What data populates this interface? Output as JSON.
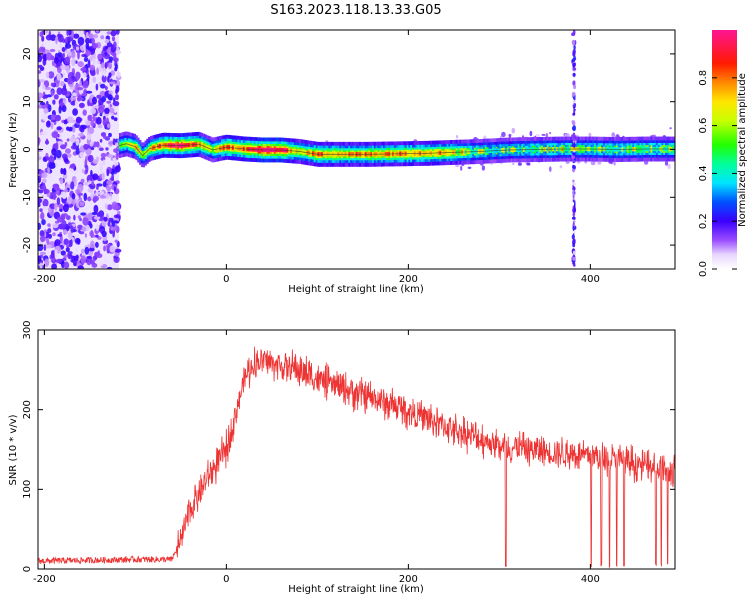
{
  "title": "S163.2023.118.13.33.G05",
  "chart_data": [
    {
      "type": "heatmap",
      "name": "spectrogram",
      "xlabel": "Height of straight line (km)",
      "ylabel": "Frequency (Hz)",
      "xlim": [
        -207,
        493
      ],
      "ylim": [
        -25,
        25
      ],
      "xticks": [
        -200,
        0,
        200,
        400
      ],
      "yticks": [
        -20,
        -10,
        0,
        10,
        20
      ],
      "colorbar": {
        "label": "Normalized spectral amplitude",
        "range": [
          0,
          1
        ],
        "ticks": [
          "0.0",
          "0.2",
          "0.4",
          "0.6",
          "0.8"
        ],
        "colormap": [
          "#ffffff",
          "#d9b8ff",
          "#8c3cf0",
          "#2a00ff",
          "#00e5ff",
          "#00ff66",
          "#b6ff00",
          "#ffff00",
          "#ff7f00",
          "#ff0000",
          "#ff1493"
        ]
      },
      "noise_region_x": [
        -207,
        -118
      ],
      "spike_x": 382,
      "ridge_points": [
        {
          "x": -118,
          "y": 0.8,
          "a": 0.55
        },
        {
          "x": -110,
          "y": 1.2,
          "a": 0.6
        },
        {
          "x": -100,
          "y": 0.6,
          "a": 0.7
        },
        {
          "x": -92,
          "y": -1.3,
          "a": 0.6
        },
        {
          "x": -84,
          "y": 0.2,
          "a": 0.7
        },
        {
          "x": -70,
          "y": 0.9,
          "a": 0.85
        },
        {
          "x": -50,
          "y": 0.8,
          "a": 0.95
        },
        {
          "x": -30,
          "y": 1.1,
          "a": 0.75
        },
        {
          "x": -15,
          "y": -0.1,
          "a": 0.6
        },
        {
          "x": 0,
          "y": 0.5,
          "a": 0.8
        },
        {
          "x": 20,
          "y": 0.1,
          "a": 0.85
        },
        {
          "x": 40,
          "y": -0.1,
          "a": 1.0
        },
        {
          "x": 60,
          "y": -0.1,
          "a": 0.95
        },
        {
          "x": 80,
          "y": -0.4,
          "a": 0.65
        },
        {
          "x": 100,
          "y": -1.0,
          "a": 0.8
        },
        {
          "x": 130,
          "y": -1.0,
          "a": 0.75
        },
        {
          "x": 160,
          "y": -1.0,
          "a": 0.78
        },
        {
          "x": 190,
          "y": -0.9,
          "a": 0.8
        },
        {
          "x": 220,
          "y": -0.8,
          "a": 0.78
        },
        {
          "x": 250,
          "y": -0.6,
          "a": 0.72
        },
        {
          "x": 280,
          "y": -0.4,
          "a": 0.58
        },
        {
          "x": 310,
          "y": -0.1,
          "a": 0.55
        },
        {
          "x": 340,
          "y": 0.0,
          "a": 0.6
        },
        {
          "x": 370,
          "y": 0.1,
          "a": 0.62
        },
        {
          "x": 400,
          "y": 0.1,
          "a": 0.6
        },
        {
          "x": 430,
          "y": 0.0,
          "a": 0.6
        },
        {
          "x": 460,
          "y": 0.1,
          "a": 0.62
        },
        {
          "x": 493,
          "y": 0.1,
          "a": 0.6
        }
      ]
    },
    {
      "type": "line",
      "name": "snr",
      "xlabel": "Height of straight line (km)",
      "ylabel": "SNR (10 * v/v)",
      "xlim": [
        -207,
        493
      ],
      "ylim": [
        0,
        300
      ],
      "xticks": [
        -200,
        0,
        200,
        400
      ],
      "yticks": [
        0,
        100,
        200,
        300
      ],
      "color": "#ee3333",
      "series": [
        {
          "x": [
            -207,
            -150,
            -100,
            -60,
            -50,
            -40,
            -20,
            0,
            10,
            20,
            30,
            40,
            60,
            80,
            100,
            150,
            200,
            250,
            300,
            350,
            400,
            450,
            470,
            493
          ],
          "y": [
            10,
            11,
            12,
            12,
            35,
            75,
            115,
            150,
            195,
            240,
            258,
            262,
            255,
            250,
            238,
            218,
            198,
            175,
            155,
            148,
            142,
            132,
            128,
            120
          ]
        }
      ],
      "dropouts_x": [
        307,
        401,
        412,
        421,
        429,
        437,
        472,
        478,
        485
      ],
      "noise_amplitude": 22
    }
  ]
}
